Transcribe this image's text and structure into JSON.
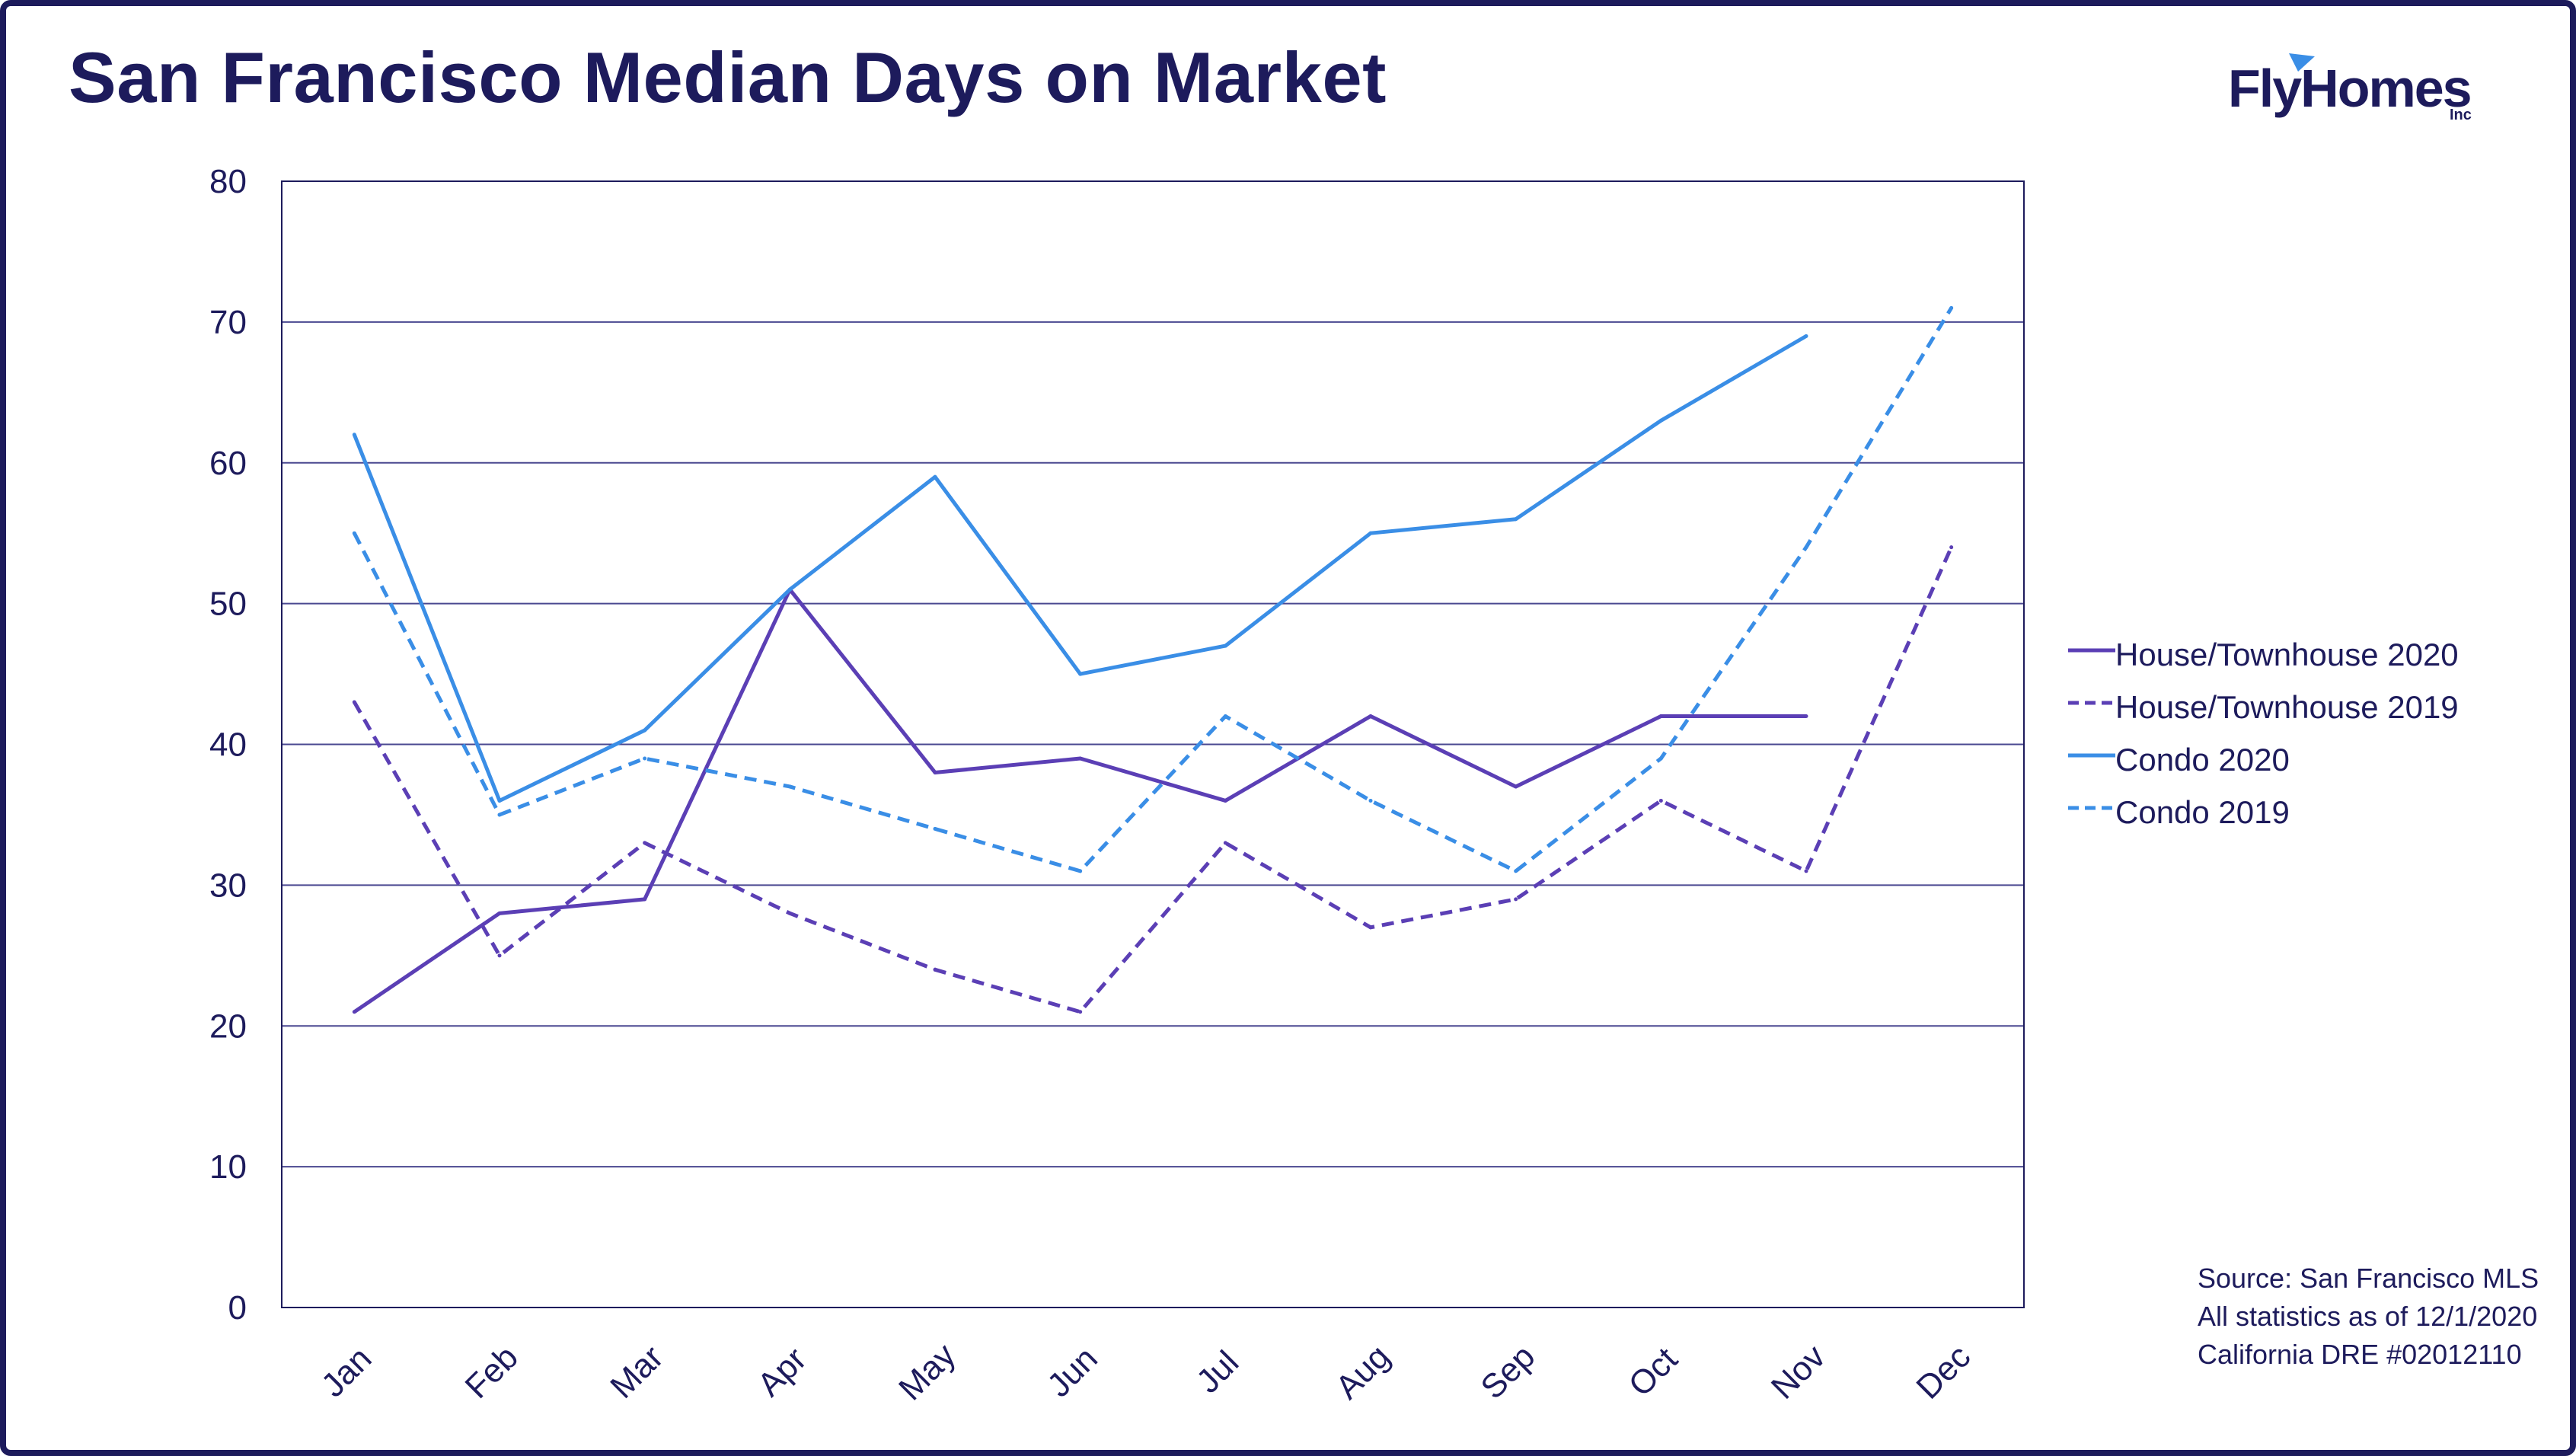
{
  "title": "San Francisco Median Days on Market",
  "logo": {
    "text": "FlyHomes",
    "suffix": "Inc"
  },
  "source_lines": [
    "Source: San Francisco MLS",
    "All statistics as of 12/1/2020",
    "California DRE #02012110"
  ],
  "colors": {
    "text": "#1d1b5c",
    "house": "#5b3fb5",
    "condo": "#3a8ee6",
    "grid": "#4a4890"
  },
  "chart_data": {
    "type": "line",
    "title": "San Francisco Median Days on Market",
    "categories": [
      "Jan",
      "Feb",
      "Mar",
      "Apr",
      "May",
      "Jun",
      "Jul",
      "Aug",
      "Sep",
      "Oct",
      "Nov",
      "Dec"
    ],
    "ylim": [
      0,
      80
    ],
    "yticks": [
      0,
      10,
      20,
      30,
      40,
      50,
      60,
      70,
      80
    ],
    "grid": true,
    "legend_position": "right",
    "series": [
      {
        "name": "House/Townhouse 2020",
        "color": "#5b3fb5",
        "dashed": false,
        "values": [
          21,
          28,
          29,
          51,
          38,
          39,
          36,
          42,
          37,
          42,
          42,
          null
        ]
      },
      {
        "name": "House/Townhouse 2019",
        "color": "#5b3fb5",
        "dashed": true,
        "values": [
          43,
          25,
          33,
          28,
          24,
          21,
          33,
          27,
          29,
          36,
          31,
          54
        ]
      },
      {
        "name": "Condo 2020",
        "color": "#3a8ee6",
        "dashed": false,
        "values": [
          62,
          36,
          41,
          51,
          59,
          45,
          47,
          55,
          56,
          63,
          69,
          null
        ]
      },
      {
        "name": "Condo 2019",
        "color": "#3a8ee6",
        "dashed": true,
        "values": [
          55,
          35,
          39,
          37,
          34,
          31,
          42,
          36,
          31,
          39,
          54,
          71
        ]
      }
    ]
  }
}
